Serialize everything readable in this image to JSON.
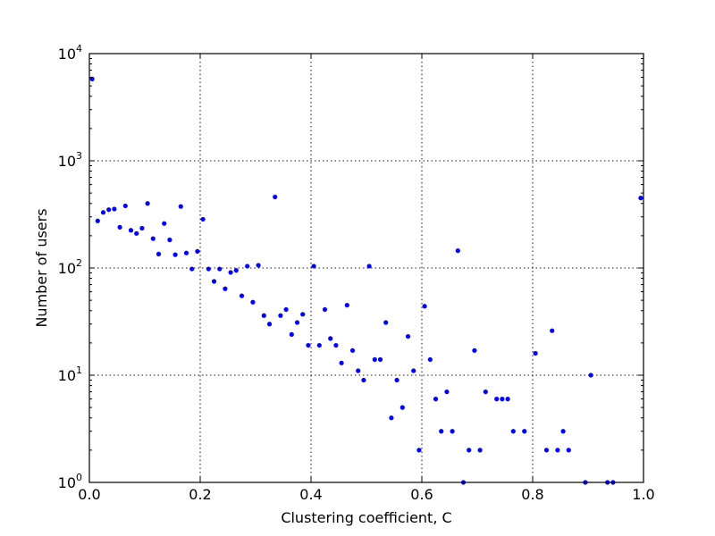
{
  "chart_data": {
    "type": "scatter",
    "title": "",
    "xlabel": "Clustering coefficient, C",
    "ylabel": "Number of users",
    "xlim": [
      0.0,
      1.0
    ],
    "ylim": [
      1,
      10000
    ],
    "yscale": "log",
    "grid": true,
    "x_ticks": [
      "0.0",
      "0.2",
      "0.4",
      "0.6",
      "0.8",
      "1.0"
    ],
    "y_ticks": [
      {
        "base": "10",
        "exp": "0"
      },
      {
        "base": "10",
        "exp": "1"
      },
      {
        "base": "10",
        "exp": "2"
      },
      {
        "base": "10",
        "exp": "3"
      },
      {
        "base": "10",
        "exp": "4"
      }
    ],
    "marker_color": "#0000ff",
    "series": [
      {
        "x": [
          0.005,
          0.015,
          0.025,
          0.035,
          0.045,
          0.055,
          0.065,
          0.075,
          0.085,
          0.095,
          0.105,
          0.115,
          0.125,
          0.135,
          0.145,
          0.155,
          0.165,
          0.175,
          0.185,
          0.195,
          0.205,
          0.215,
          0.225,
          0.235,
          0.245,
          0.255,
          0.265,
          0.275,
          0.285,
          0.295,
          0.305,
          0.315,
          0.325,
          0.335,
          0.345,
          0.355,
          0.365,
          0.375,
          0.385,
          0.395,
          0.405,
          0.415,
          0.425,
          0.435,
          0.445,
          0.455,
          0.465,
          0.475,
          0.485,
          0.495,
          0.505,
          0.515,
          0.525,
          0.535,
          0.545,
          0.555,
          0.565,
          0.575,
          0.585,
          0.595,
          0.605,
          0.615,
          0.625,
          0.635,
          0.645,
          0.655,
          0.665,
          0.675,
          0.685,
          0.695,
          0.705,
          0.715,
          0.735,
          0.745,
          0.755,
          0.765,
          0.785,
          0.805,
          0.825,
          0.835,
          0.845,
          0.855,
          0.865,
          0.895,
          0.905,
          0.935,
          0.945,
          0.995
        ],
        "y": [
          5800,
          275,
          330,
          350,
          355,
          240,
          380,
          225,
          210,
          235,
          400,
          188,
          135,
          260,
          183,
          133,
          375,
          138,
          98,
          143,
          285,
          98,
          75,
          98,
          64,
          91,
          95,
          55,
          104,
          48,
          106,
          36,
          30,
          460,
          36,
          41,
          24,
          31,
          37,
          19,
          104,
          19,
          41,
          22,
          19,
          13,
          45,
          17,
          11,
          9,
          104,
          14,
          14,
          31,
          4,
          9,
          5,
          23,
          11,
          2,
          44,
          14,
          6,
          3,
          7,
          3,
          145,
          1,
          2,
          17,
          2,
          7,
          6,
          6,
          6,
          3,
          3,
          16,
          2,
          26,
          2,
          3,
          2,
          1,
          10,
          1,
          1,
          450
        ]
      }
    ]
  }
}
